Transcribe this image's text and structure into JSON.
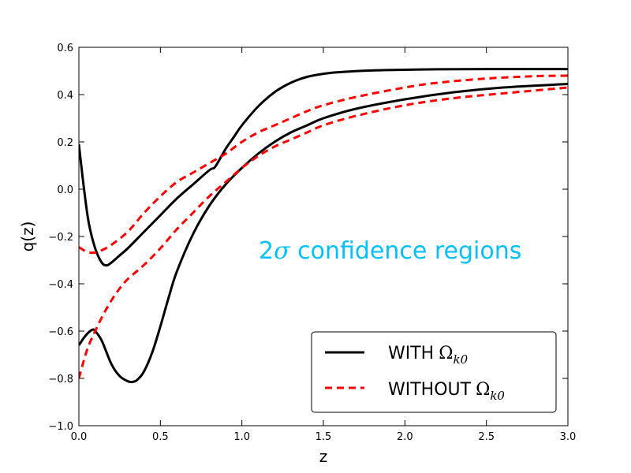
{
  "chart_data": {
    "type": "line",
    "title": "",
    "xlabel": "z",
    "ylabel": "q(z)",
    "xlim": [
      0.0,
      3.0
    ],
    "ylim": [
      -1.0,
      0.6
    ],
    "xticks": [
      0.0,
      0.5,
      1.0,
      1.5,
      2.0,
      2.5,
      3.0
    ],
    "xtick_labels": [
      "0.0",
      "0.5",
      "1.0",
      "1.5",
      "2.0",
      "2.5",
      "3.0"
    ],
    "yticks": [
      -1.0,
      -0.8,
      -0.6,
      -0.4,
      -0.2,
      0.0,
      0.2,
      0.4,
      0.6
    ],
    "ytick_labels": [
      "−1.0",
      "−0.8",
      "−0.6",
      "−0.4",
      "−0.2",
      "0.0",
      "0.2",
      "0.4",
      "0.6"
    ],
    "grid": false,
    "legend_position": "bottom-right",
    "annotation": {
      "text_number": "2",
      "text_symbol": "σ",
      "text_rest": " confidence regions",
      "color": "#00bfff"
    },
    "series": [
      {
        "name": "WITH",
        "legend_symbol": "Ω",
        "legend_subscript": "k0",
        "color": "#000000",
        "dash": "solid",
        "curves": [
          {
            "x": [
              0.0,
              0.03,
              0.06,
              0.1,
              0.14,
              0.17,
              0.2,
              0.25,
              0.3,
              0.4,
              0.5,
              0.6,
              0.7,
              0.8,
              0.83,
              0.85,
              0.9,
              0.95,
              1.0,
              1.1,
              1.2,
              1.3,
              1.4,
              1.5,
              1.6,
              1.8,
              2.0,
              2.2,
              2.5,
              3.0
            ],
            "y": [
              0.19,
              0.01,
              -0.14,
              -0.25,
              -0.31,
              -0.322,
              -0.31,
              -0.28,
              -0.25,
              -0.18,
              -0.11,
              -0.04,
              0.02,
              0.08,
              0.09,
              0.11,
              0.17,
              0.22,
              0.27,
              0.35,
              0.41,
              0.45,
              0.475,
              0.488,
              0.495,
              0.502,
              0.505,
              0.507,
              0.508,
              0.508
            ]
          },
          {
            "x": [
              0.0,
              0.04,
              0.08,
              0.1,
              0.14,
              0.2,
              0.25,
              0.3,
              0.33,
              0.36,
              0.4,
              0.45,
              0.5,
              0.55,
              0.6,
              0.7,
              0.8,
              0.9,
              1.0,
              1.1,
              1.2,
              1.3,
              1.4,
              1.5,
              1.7,
              2.0,
              2.3,
              2.6,
              3.0
            ],
            "y": [
              -0.66,
              -0.62,
              -0.595,
              -0.6,
              -0.64,
              -0.74,
              -0.79,
              -0.812,
              -0.815,
              -0.805,
              -0.77,
              -0.69,
              -0.58,
              -0.46,
              -0.35,
              -0.19,
              -0.07,
              0.02,
              0.09,
              0.15,
              0.2,
              0.24,
              0.27,
              0.3,
              0.34,
              0.38,
              0.41,
              0.43,
              0.445
            ]
          }
        ]
      },
      {
        "name": "WITHOUT",
        "legend_symbol": "Ω",
        "legend_subscript": "k0",
        "color": "#ff0000",
        "dash": "dashed",
        "curves": [
          {
            "x": [
              0.0,
              0.05,
              0.1,
              0.15,
              0.2,
              0.3,
              0.4,
              0.5,
              0.6,
              0.7,
              0.8,
              0.9,
              1.0,
              1.1,
              1.2,
              1.3,
              1.4,
              1.5,
              1.7,
              2.0,
              2.2,
              2.5,
              2.8,
              3.0
            ],
            "y": [
              -0.245,
              -0.265,
              -0.268,
              -0.255,
              -0.235,
              -0.18,
              -0.1,
              -0.03,
              0.03,
              0.07,
              0.11,
              0.15,
              0.2,
              0.24,
              0.27,
              0.3,
              0.33,
              0.355,
              0.39,
              0.43,
              0.45,
              0.468,
              0.478,
              0.48
            ]
          },
          {
            "x": [
              0.0,
              0.05,
              0.1,
              0.15,
              0.2,
              0.25,
              0.3,
              0.4,
              0.5,
              0.6,
              0.7,
              0.8,
              0.9,
              1.0,
              1.1,
              1.2,
              1.3,
              1.4,
              1.5,
              1.7,
              2.0,
              2.3,
              2.6,
              3.0
            ],
            "y": [
              -0.8,
              -0.68,
              -0.6,
              -0.53,
              -0.47,
              -0.42,
              -0.38,
              -0.32,
              -0.25,
              -0.17,
              -0.1,
              -0.03,
              0.03,
              0.09,
              0.14,
              0.18,
              0.21,
              0.24,
              0.27,
              0.31,
              0.355,
              0.385,
              0.405,
              0.43
            ]
          }
        ]
      }
    ]
  }
}
